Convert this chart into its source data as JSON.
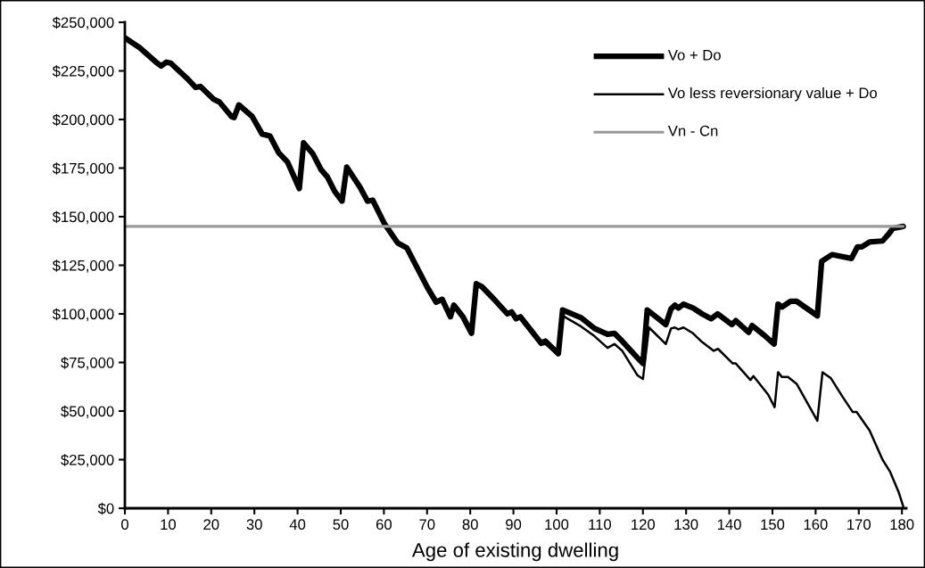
{
  "chart_data": {
    "type": "line",
    "xlabel": "Age of existing dwelling",
    "xlim": [
      0,
      181
    ],
    "xticks": [
      0,
      10,
      20,
      30,
      40,
      50,
      60,
      70,
      80,
      90,
      100,
      110,
      120,
      130,
      140,
      150,
      160,
      170,
      180
    ],
    "ylim": [
      0,
      250000
    ],
    "yticks": [
      {
        "value": 0,
        "label": "$0"
      },
      {
        "value": 25000,
        "label": "$25,000"
      },
      {
        "value": 50000,
        "label": "$50,000"
      },
      {
        "value": 75000,
        "label": "$75,000"
      },
      {
        "value": 100000,
        "label": "$100,000"
      },
      {
        "value": 125000,
        "label": "$125,000"
      },
      {
        "value": 150000,
        "label": "$150,000"
      },
      {
        "value": 175000,
        "label": "$175,000"
      },
      {
        "value": 200000,
        "label": "$200,000"
      },
      {
        "value": 225000,
        "label": "$225,000"
      },
      {
        "value": 250000,
        "label": "$250,000"
      }
    ],
    "grid": false,
    "legend": "top right",
    "marker": "none",
    "series": [
      {
        "name": "Vo + Do",
        "color": "#000000",
        "x": [
          0,
          3.4,
          7.5,
          8.4,
          9.6,
          10.6,
          14.7,
          16.4,
          17.5,
          20.5,
          21.9,
          24.7,
          25.3,
          26.4,
          29.5,
          31.8,
          33.6,
          35.6,
          37.7,
          40.4,
          41.4,
          43.5,
          45.5,
          46.9,
          48.6,
          50.3,
          51.4,
          54.5,
          56.2,
          57.4,
          60.1,
          63.2,
          65.3,
          70.1,
          72.1,
          73.5,
          75.4,
          76.2,
          78.3,
          80.3,
          81.4,
          82.7,
          85.1,
          88.6,
          89.6,
          90.6,
          91.6,
          96.4,
          97.4,
          100.4,
          101.4,
          105.7,
          108.8,
          111.8,
          113.4,
          115.2,
          118.7,
          120,
          121,
          125.3,
          126.5,
          127.4,
          128.2,
          129.4,
          131.6,
          133.7,
          135.8,
          137.3,
          140.6,
          141.5,
          144.5,
          145.3,
          148.1,
          150.4,
          151.3,
          152.2,
          154.2,
          155.6,
          160.4,
          161.4,
          163.8,
          168.3,
          169.7,
          170.7,
          172.5,
          175.5,
          176.9,
          177.9,
          180.3
        ],
        "values": [
          242000,
          237000,
          229000,
          227500,
          229500,
          229000,
          220500,
          216500,
          217000,
          210500,
          209000,
          201500,
          201000,
          207500,
          201500,
          192500,
          191500,
          183000,
          178000,
          164500,
          188000,
          182500,
          174000,
          170500,
          163000,
          158000,
          175500,
          165000,
          158000,
          158500,
          146500,
          136500,
          134000,
          113500,
          106000,
          107500,
          98500,
          104500,
          98500,
          90000,
          115500,
          114000,
          108500,
          100000,
          101000,
          97500,
          98500,
          85000,
          86000,
          79500,
          102000,
          98000,
          92500,
          89500,
          90000,
          86000,
          77500,
          74500,
          102000,
          94500,
          102500,
          104500,
          103000,
          105000,
          103000,
          100000,
          97500,
          100000,
          94500,
          96500,
          90500,
          94000,
          89000,
          84500,
          105000,
          103500,
          106500,
          106500,
          99000,
          127000,
          130500,
          128500,
          134500,
          134500,
          137000,
          137500,
          141000,
          144000,
          145000
        ]
      },
      {
        "name": "Vo less reversionary value + Do",
        "color": "#000000",
        "x": [
          0,
          3.4,
          7.5,
          8.4,
          9.6,
          10.6,
          14.7,
          16.4,
          17.5,
          20.5,
          21.9,
          24.7,
          25.3,
          26.4,
          29.5,
          31.8,
          33.6,
          35.6,
          37.7,
          40.4,
          41.4,
          43.5,
          45.5,
          46.9,
          48.6,
          50.3,
          51.4,
          54.5,
          56.2,
          57.4,
          60.1,
          63.2,
          65.3,
          70.1,
          72.1,
          73.5,
          75.4,
          76.2,
          78.3,
          80.3,
          81.4,
          82.7,
          85.1,
          88.6,
          89.6,
          90.6,
          91.6,
          96.4,
          97.4,
          100.4,
          101.4,
          105.7,
          108.8,
          111.8,
          113.4,
          115.2,
          118.7,
          120,
          121.4,
          125.3,
          126.5,
          127.4,
          128.2,
          129.4,
          131.6,
          133.7,
          136.4,
          137.4,
          140.8,
          141.5,
          144.9,
          145.6,
          149,
          150.5,
          151.3,
          152.2,
          153.6,
          155.6,
          160.4,
          161.6,
          163.5,
          166.2,
          168.6,
          169.5,
          172.5,
          175.5,
          177.2,
          179.2,
          180.3
        ],
        "values": [
          242000,
          237000,
          229000,
          227500,
          229500,
          229000,
          220500,
          216500,
          217000,
          210500,
          209000,
          201500,
          201000,
          207500,
          201500,
          192500,
          191500,
          183000,
          178000,
          164500,
          188000,
          182500,
          174000,
          170500,
          163000,
          158000,
          175500,
          165000,
          158000,
          158500,
          146500,
          136500,
          134000,
          113500,
          106000,
          107500,
          98500,
          104500,
          98500,
          90000,
          115500,
          114000,
          108500,
          100000,
          101000,
          97500,
          98000,
          84000,
          84500,
          79000,
          99000,
          93500,
          88500,
          82500,
          84500,
          81000,
          68500,
          66500,
          93000,
          84500,
          92500,
          93000,
          92000,
          93000,
          90000,
          85500,
          81000,
          82000,
          74500,
          74500,
          66000,
          68000,
          58500,
          52000,
          70000,
          67500,
          67500,
          64000,
          45000,
          70000,
          67000,
          57500,
          49500,
          49500,
          40000,
          25000,
          19000,
          8500,
          1000
        ]
      },
      {
        "name": "Vn - Cn",
        "color": "#999999",
        "x": [
          0,
          180.3
        ],
        "values": [
          145000,
          145000
        ]
      }
    ]
  }
}
